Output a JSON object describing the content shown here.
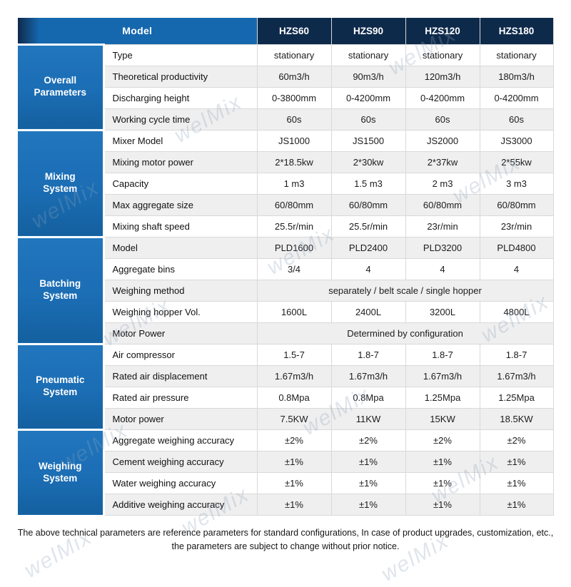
{
  "header": {
    "model_label": "Model",
    "columns": [
      "HZS60",
      "HZS90",
      "HZS120",
      "HZS180"
    ]
  },
  "groups": [
    {
      "name": "Overall Parameters",
      "rows": [
        {
          "label": "Type",
          "values": [
            "stationary",
            "stationary",
            "stationary",
            "stationary"
          ]
        },
        {
          "label": "Theoretical productivity",
          "values": [
            "60m3/h",
            "90m3/h",
            "120m3/h",
            "180m3/h"
          ]
        },
        {
          "label": "Discharging height",
          "values": [
            "0-3800mm",
            "0-4200mm",
            "0-4200mm",
            "0-4200mm"
          ]
        },
        {
          "label": "Working cycle time",
          "values": [
            "60s",
            "60s",
            "60s",
            "60s"
          ]
        }
      ]
    },
    {
      "name": "Mixing System",
      "rows": [
        {
          "label": "Mixer Model",
          "values": [
            "JS1000",
            "JS1500",
            "JS2000",
            "JS3000"
          ]
        },
        {
          "label": "Mixing motor power",
          "values": [
            "2*18.5kw",
            "2*30kw",
            "2*37kw",
            "2*55kw"
          ]
        },
        {
          "label": "Capacity",
          "values": [
            "1 m3",
            "1.5 m3",
            "2 m3",
            "3 m3"
          ]
        },
        {
          "label": "Max aggregate size",
          "values": [
            "60/80mm",
            "60/80mm",
            "60/80mm",
            "60/80mm"
          ]
        },
        {
          "label": "Mixing shaft speed",
          "values": [
            "25.5r/min",
            "25.5r/min",
            "23r/min",
            "23r/min"
          ]
        }
      ]
    },
    {
      "name": "Batching System",
      "rows": [
        {
          "label": "Model",
          "values": [
            "PLD1600",
            "PLD2400",
            "PLD3200",
            "PLD4800"
          ]
        },
        {
          "label": "Aggregate bins",
          "values": [
            "3/4",
            "4",
            "4",
            "4"
          ]
        },
        {
          "label": "Weighing method",
          "span": "separately  / belt scale / single hopper"
        },
        {
          "label": "Weighing hopper Vol.",
          "values": [
            "1600L",
            "2400L",
            "3200L",
            "4800L"
          ]
        },
        {
          "label": "Motor Power",
          "span": "Determined by configuration"
        }
      ]
    },
    {
      "name": "Pneumatic System",
      "rows": [
        {
          "label": "Air compressor",
          "values": [
            "1.5-7",
            "1.8-7",
            "1.8-7",
            "1.8-7"
          ]
        },
        {
          "label": "Rated air displacement",
          "values": [
            "1.67m3/h",
            "1.67m3/h",
            "1.67m3/h",
            "1.67m3/h"
          ]
        },
        {
          "label": "Rated air pressure",
          "values": [
            "0.8Mpa",
            "0.8Mpa",
            "1.25Mpa",
            "1.25Mpa"
          ]
        },
        {
          "label": "Motor power",
          "values": [
            "7.5KW",
            "11KW",
            "15KW",
            "18.5KW"
          ]
        }
      ]
    },
    {
      "name": "Weighing System",
      "rows": [
        {
          "label": "Aggregate weighing accuracy",
          "values": [
            "±2%",
            "±2%",
            "±2%",
            "±2%"
          ]
        },
        {
          "label": "Cement weighing accuracy",
          "values": [
            "±1%",
            "±1%",
            "±1%",
            "±1%"
          ]
        },
        {
          "label": "Water weighing accuracy",
          "values": [
            "±1%",
            "±1%",
            "±1%",
            "±1%"
          ]
        },
        {
          "label": "Additive weighing accuracy",
          "values": [
            "±1%",
            "±1%",
            "±1%",
            "±1%"
          ]
        }
      ]
    }
  ],
  "footer": {
    "line1": "The above technical parameters are reference parameters for standard configurations, In case of  product upgrades, customization, etc.,",
    "line2": "the parameters are subject to change without prior notice."
  },
  "watermark": {
    "text": "welMix"
  },
  "colors": {
    "header_blue": "#1568ae",
    "header_navy": "#0e2a4b",
    "group_blue": "#1b6db4",
    "row_alt": "#efefef",
    "border": "#d9d9d9",
    "watermark": "#8fa3b8"
  }
}
